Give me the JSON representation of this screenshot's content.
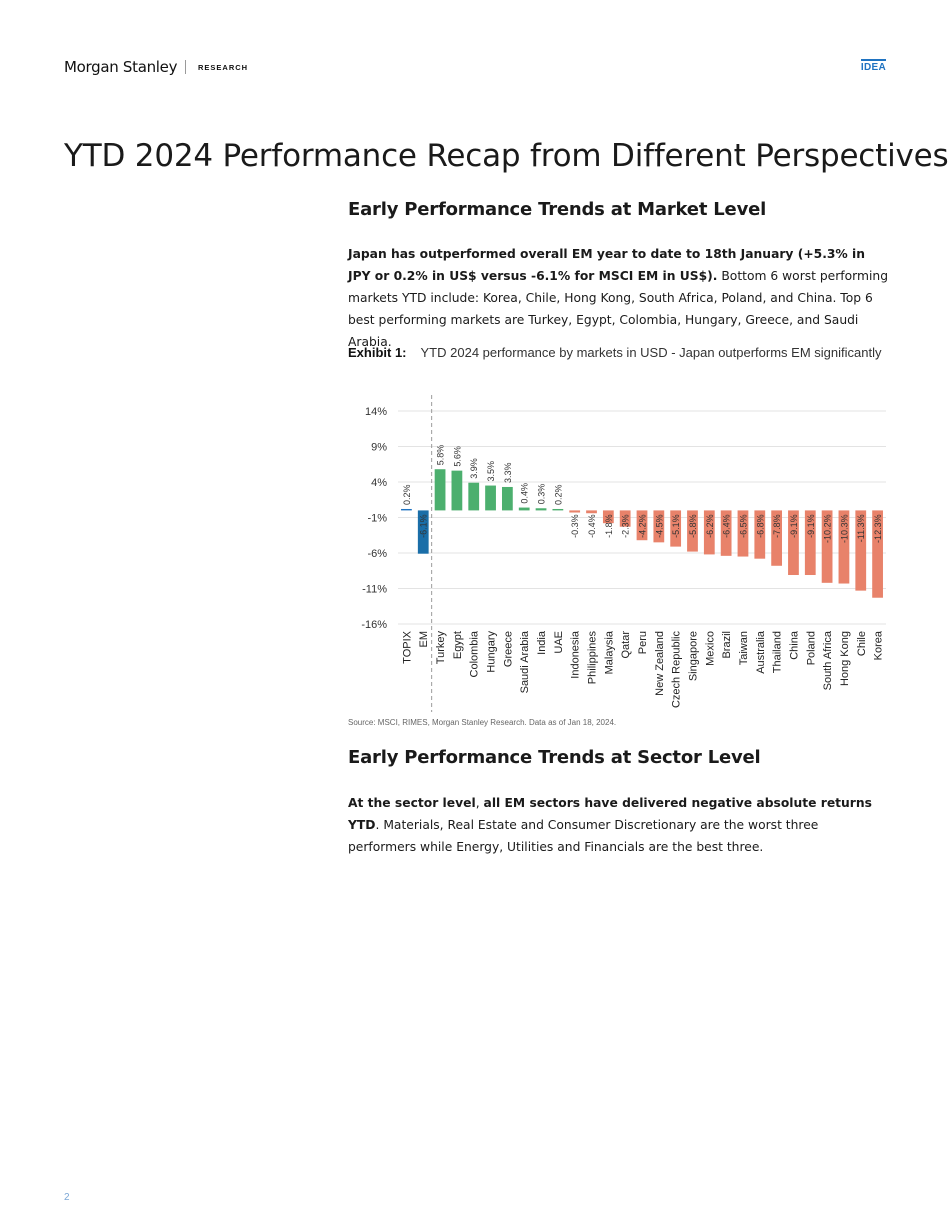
{
  "header": {
    "brand": "Morgan Stanley",
    "section": "RESEARCH",
    "badge": "IDEA"
  },
  "title": "YTD 2024 Performance Recap from Different Perspectives",
  "section1": {
    "heading": "Early Performance Trends at Market Level",
    "para_bold": "Japan has outperformed overall EM year to date to 18th January (+5.3% in JPY or 0.2% in US$ versus -6.1% for MSCI EM in US$).",
    "para_rest": " Bottom 6 worst performing markets YTD include: Korea, Chile, Hong Kong, South Africa, Poland, and China. Top 6 best performing markets are Turkey, Egypt, Colombia, Hungary, Greece, and Saudi Arabia."
  },
  "exhibit": {
    "label": "Exhibit 1:",
    "caption": "YTD 2024 performance by markets in USD - Japan outperforms EM significantly"
  },
  "chart_data": {
    "type": "bar",
    "categories": [
      "TOPIX",
      "EM",
      "Turkey",
      "Egypt",
      "Colombia",
      "Hungary",
      "Greece",
      "Saudi Arabia",
      "India",
      "UAE",
      "Indonesia",
      "Philippines",
      "Malaysia",
      "Qatar",
      "Peru",
      "New Zealand",
      "Czech Republic",
      "Singapore",
      "Mexico",
      "Brazil",
      "Taiwan",
      "Australia",
      "Thailand",
      "China",
      "Poland",
      "South Africa",
      "Hong Kong",
      "Chile",
      "Korea"
    ],
    "values": [
      0.2,
      -6.1,
      5.8,
      5.6,
      3.9,
      3.5,
      3.3,
      0.4,
      0.3,
      0.2,
      -0.3,
      -0.4,
      -1.8,
      -2.3,
      -4.2,
      -4.5,
      -5.1,
      -5.8,
      -6.2,
      -6.4,
      -6.5,
      -6.8,
      -7.8,
      -9.1,
      -9.1,
      -10.2,
      -10.3,
      -11.3,
      -12.3
    ],
    "data_labels": [
      "0.2%",
      "-6.1%",
      "5.8%",
      "5.6%",
      "3.9%",
      "3.5%",
      "3.3%",
      "0.4%",
      "0.3%",
      "0.2%",
      "-0.3%",
      "-0.4%",
      "-1.8%",
      "-2.3%",
      "-4.2%",
      "-4.5%",
      "-5.1%",
      "-5.8%",
      "-6.2%",
      "-6.4%",
      "-6.5%",
      "-6.8%",
      "-7.8%",
      "-9.1%",
      "-9.1%",
      "-10.2%",
      "-10.3%",
      "-11.3%",
      "-12.3%"
    ],
    "yticks": [
      14,
      9,
      4,
      -1,
      -6,
      -11,
      -16
    ],
    "ytick_labels": [
      "14%",
      "9%",
      "4%",
      "-1%",
      "-6%",
      "-11%",
      "-16%"
    ],
    "ylim": [
      -16,
      14
    ],
    "grid": true,
    "colors": {
      "topix": "#1f73c1",
      "em": "#1a6ea8",
      "positive": "#4caf6e",
      "negative": "#e8826a",
      "grid": "#e3e3e3",
      "divider": "#9a9a9a"
    }
  },
  "source": "Source: MSCI, RIMES, Morgan Stanley Research. Data as of Jan 18, 2024.",
  "section2": {
    "heading": "Early Performance Trends at Sector Level",
    "para_bold1": "At the sector level",
    "para_mid": ", ",
    "para_bold2": "all EM sectors have delivered negative absolute returns YTD",
    "para_rest": ". Materials, Real Estate and Consumer Discretionary are the worst three performers while Energy, Utilities and Financials are the best three."
  },
  "page_number": "2"
}
